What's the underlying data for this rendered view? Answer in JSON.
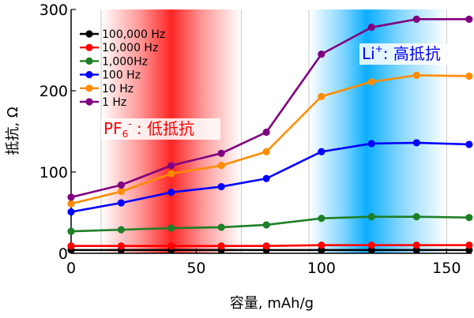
{
  "chart_data": {
    "type": "line",
    "xlabel": "容量, mAh/g",
    "ylabel": "抵抗, Ω",
    "xlim": [
      0,
      160
    ],
    "ylim": [
      0,
      300
    ],
    "xticks": [
      0,
      50,
      100,
      150
    ],
    "yticks": [
      0,
      100,
      200,
      300
    ],
    "x": [
      0,
      20,
      40,
      60,
      78,
      100,
      120,
      138,
      159
    ],
    "legend_position": "top-left",
    "series": [
      {
        "name": "100,000 Hz",
        "color": "#000000",
        "values": [
          4,
          4,
          4,
          4,
          4,
          4,
          4,
          4,
          4
        ]
      },
      {
        "name": "10,000 Hz",
        "color": "#ff0000",
        "values": [
          9,
          9,
          9,
          9,
          9,
          10,
          10,
          10,
          10
        ]
      },
      {
        "name": "1,000Hz",
        "color": "#1e7f26",
        "values": [
          27,
          29,
          31,
          32,
          35,
          43,
          45,
          45,
          44
        ]
      },
      {
        "name": "100 Hz",
        "color": "#0000ff",
        "values": [
          51,
          62,
          75,
          82,
          92,
          125,
          135,
          136,
          134
        ]
      },
      {
        "name": "10 Hz",
        "color": "#ff8c00",
        "values": [
          61,
          76,
          98,
          108,
          125,
          193,
          211,
          219,
          218
        ]
      },
      {
        "name": "1 Hz",
        "color": "#800080",
        "values": [
          69,
          84,
          108,
          123,
          149,
          245,
          278,
          288,
          288
        ]
      }
    ],
    "annotations": [
      {
        "label": "PF6- : 低抵抗",
        "text_main": "PF",
        "text_sub": "6",
        "text_sup": "-",
        "text_rest": " : 低抵抗",
        "color": "#ff0000"
      },
      {
        "label": "Li+: 高抵抗",
        "text_main": "Li",
        "text_sup": "+",
        "text_rest": ": 高抵抗",
        "color": "#0000ff"
      }
    ],
    "shaded_bands": [
      {
        "name": "red-band",
        "x_start": 12,
        "x_center": 40,
        "x_end": 68,
        "color": "#ff1a1a"
      },
      {
        "name": "blue-band",
        "x_start": 95,
        "x_center": 118,
        "x_end": 150,
        "color": "#00aaff"
      }
    ]
  }
}
